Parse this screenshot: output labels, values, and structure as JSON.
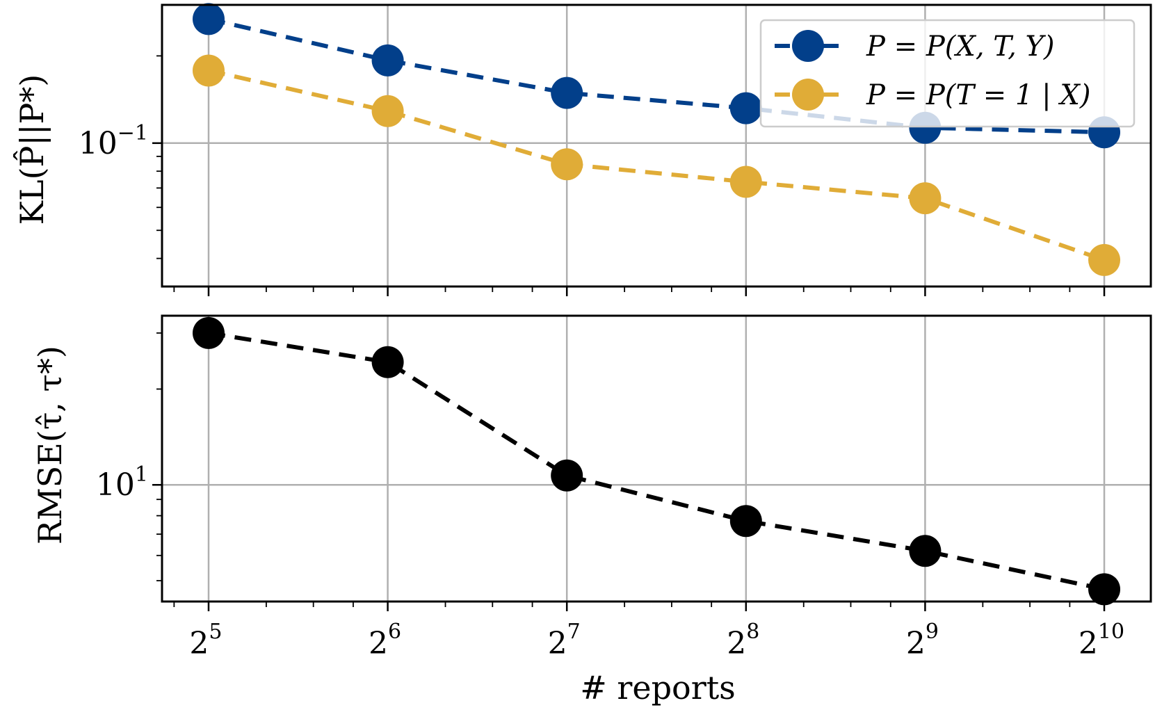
{
  "chart_data": [
    {
      "type": "line",
      "panel": "top",
      "x_base": 2,
      "x_exponents": [
        5,
        6,
        7,
        8,
        9,
        10
      ],
      "yscale": "log",
      "ylim": [
        0.032,
        0.3
      ],
      "ylabel": "KL(P̂||P*)",
      "y_tick_labels": [
        {
          "value": 0.1,
          "base": "10",
          "exp": "−1"
        }
      ],
      "series": [
        {
          "name": "P = P(X, T, Y)",
          "color": "#023f8a",
          "values": [
            0.268,
            0.193,
            0.149,
            0.132,
            0.113,
            0.109
          ]
        },
        {
          "name": "P = P(T = 1 | X)",
          "color": "#e0ac37",
          "values": [
            0.178,
            0.129,
            0.0845,
            0.0735,
            0.0645,
            0.0395
          ]
        }
      ],
      "legend_location": "top-right"
    },
    {
      "type": "line",
      "panel": "bottom",
      "x_base": 2,
      "x_exponents": [
        5,
        6,
        7,
        8,
        9,
        10
      ],
      "yscale": "log",
      "ylim": [
        4.3,
        34
      ],
      "ylabel": "RMSE(τ̂, τ*)",
      "xlabel": "# reports",
      "y_tick_labels": [
        {
          "value": 10,
          "base": "10",
          "exp": "1"
        }
      ],
      "series": [
        {
          "name": "RMSE",
          "color": "#000000",
          "values": [
            30.0,
            24.3,
            10.7,
            7.7,
            6.2,
            4.7
          ]
        }
      ]
    }
  ]
}
